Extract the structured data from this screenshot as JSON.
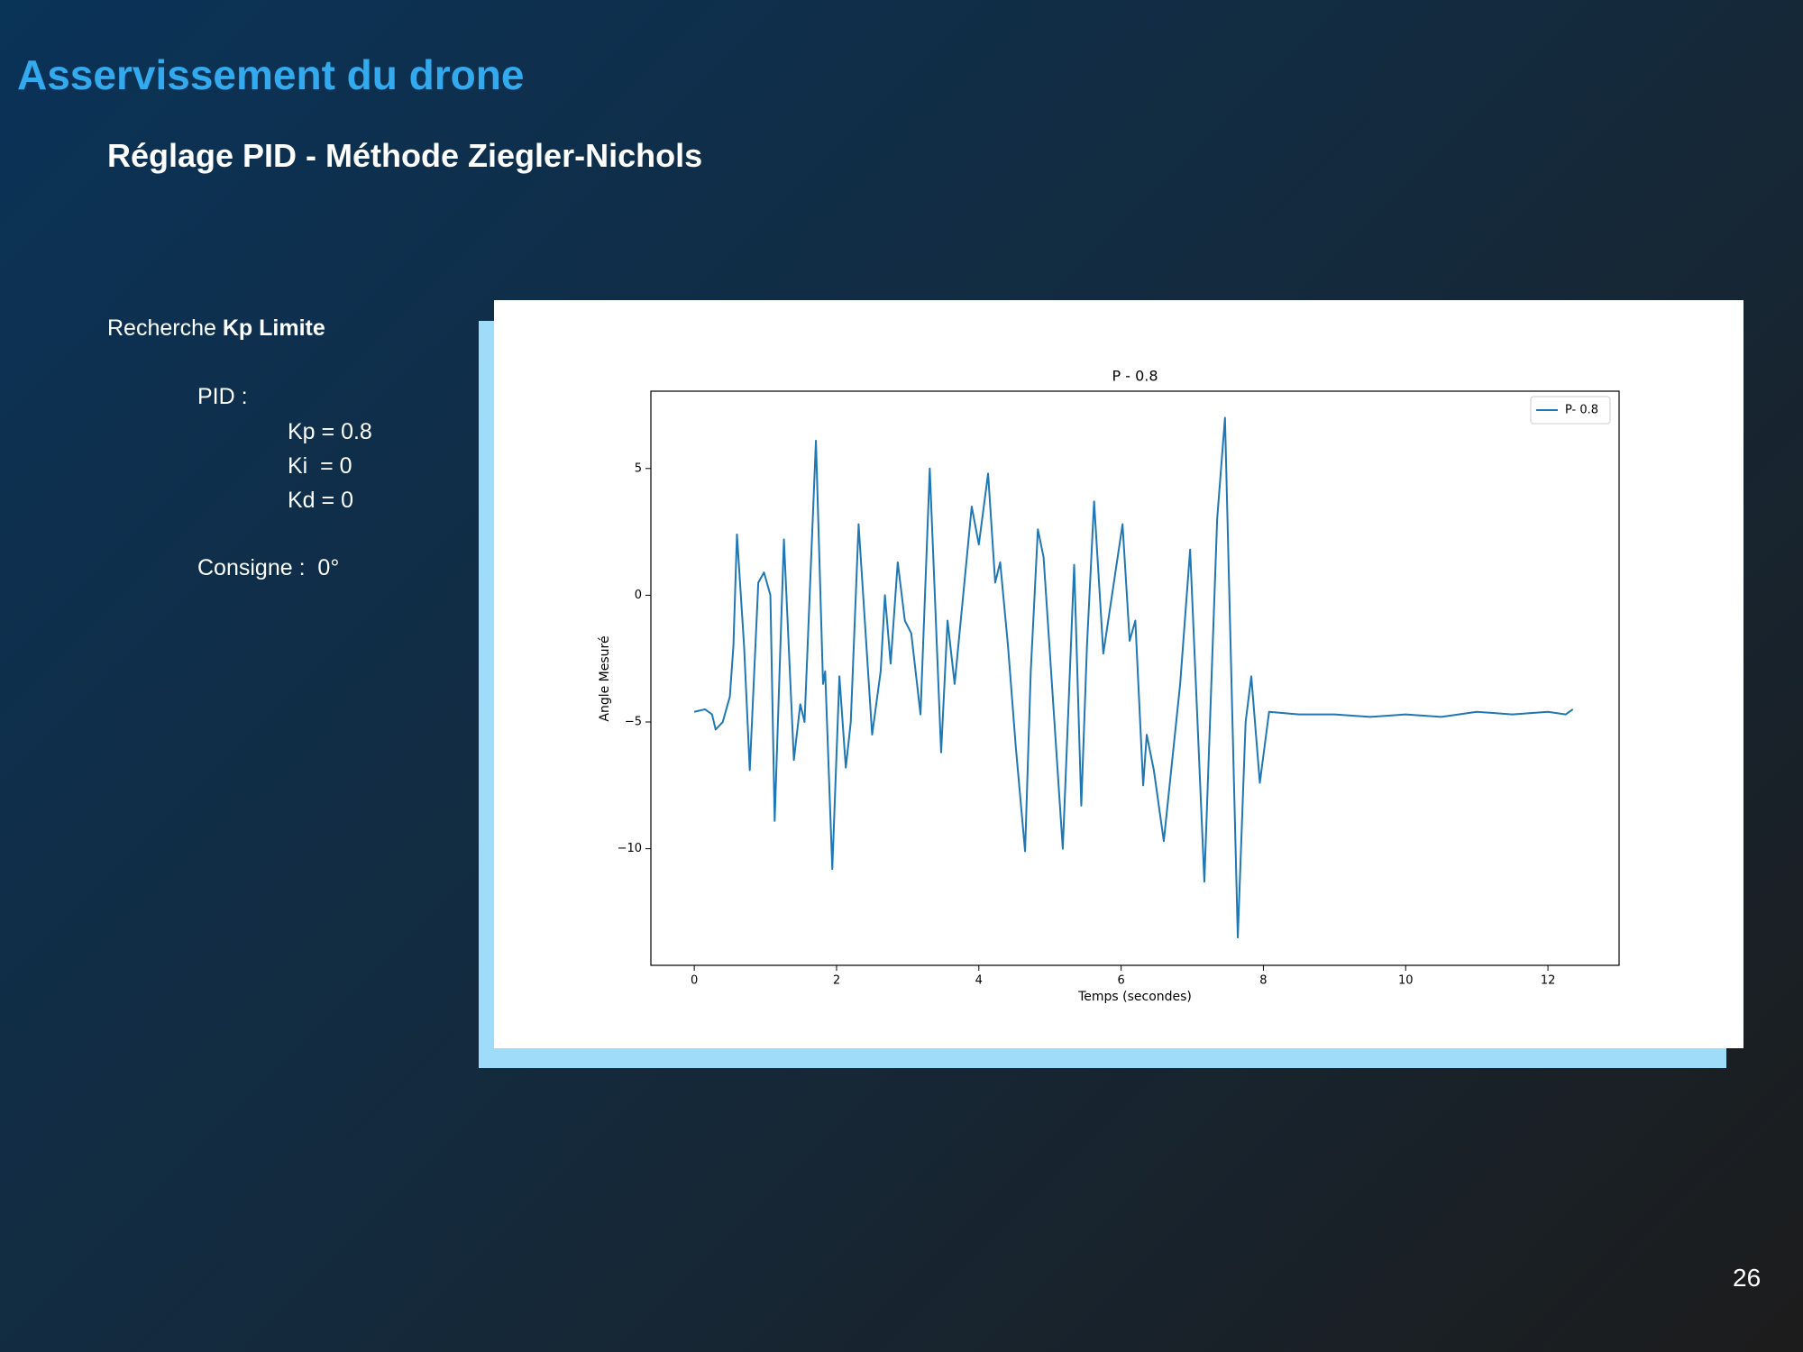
{
  "slide": {
    "title": "Asservissement du drone",
    "subtitle": "Réglage PID - Méthode Ziegler-Nichols",
    "search_label": "Recherche",
    "search_emphasis": "Kp Limite",
    "pid_label": "PID :",
    "params": [
      "Kp = 0.8",
      "Ki  = 0",
      "Kd = 0"
    ],
    "setpoint": "Consigne :  0°",
    "page_number": "26"
  },
  "chart_data": {
    "type": "line",
    "title": "P - 0.8",
    "xlabel": "Temps (secondes)",
    "ylabel": "Angle Mesuré",
    "xlim": [
      -0.61,
      13.0
    ],
    "ylim": [
      -14.6,
      8.05
    ],
    "xticks": [
      0,
      2,
      4,
      6,
      8,
      10,
      12
    ],
    "yticks": [
      {
        "value": -10,
        "label": "−10"
      },
      {
        "value": -5,
        "label": "−5"
      },
      0,
      5
    ],
    "legend": "upper right",
    "series": [
      {
        "name": "P- 0.8",
        "color": "#1f77b4",
        "x": [
          0,
          0.15,
          0.25,
          0.3,
          0.4,
          0.5,
          0.55,
          0.6,
          0.7,
          0.78,
          0.9,
          0.98,
          1.07,
          1.13,
          1.26,
          1.4,
          1.49,
          1.55,
          1.71,
          1.81,
          1.84,
          1.94,
          2.04,
          2.13,
          2.2,
          2.31,
          2.5,
          2.62,
          2.68,
          2.76,
          2.86,
          2.96,
          3.05,
          3.18,
          3.31,
          3.47,
          3.56,
          3.66,
          3.9,
          4.0,
          4.13,
          4.23,
          4.3,
          4.41,
          4.52,
          4.65,
          4.73,
          4.83,
          4.91,
          5.18,
          5.34,
          5.44,
          5.52,
          5.62,
          5.75,
          6.02,
          6.12,
          6.2,
          6.31,
          6.36,
          6.46,
          6.6,
          6.83,
          6.97,
          7.17,
          7.35,
          7.46,
          7.64,
          7.75,
          7.83,
          7.95,
          8.08,
          8.5,
          9.0,
          9.5,
          10.0,
          10.5,
          11.0,
          11.5,
          12.0,
          12.25,
          12.35
        ],
        "values": [
          -4.6,
          -4.5,
          -4.7,
          -5.3,
          -5.0,
          -4.0,
          -2,
          2.4,
          -2,
          -6.9,
          0.5,
          0.9,
          0,
          -8.9,
          2.2,
          -6.5,
          -4.3,
          -5,
          6.1,
          -3.5,
          -3,
          -10.8,
          -3.2,
          -6.8,
          -5,
          2.8,
          -5.5,
          -3,
          0,
          -2.7,
          1.3,
          -1,
          -1.5,
          -4.7,
          5,
          -6.2,
          -1,
          -3.5,
          3.5,
          2,
          4.8,
          0.5,
          1.3,
          -2,
          -6,
          -10.1,
          -3,
          2.6,
          1.5,
          -10,
          1.2,
          -8.3,
          -2,
          3.7,
          -2.3,
          2.8,
          -1.8,
          -1,
          -7.5,
          -5.5,
          -6.9,
          -9.7,
          -3.5,
          1.8,
          -11.3,
          3,
          7,
          -13.5,
          -5,
          -3.2,
          -7.4,
          -4.6,
          -4.7,
          -4.7,
          -4.8,
          -4.7,
          -4.8,
          -4.6,
          -4.7,
          -4.6,
          -4.7,
          -4.5
        ]
      }
    ]
  }
}
